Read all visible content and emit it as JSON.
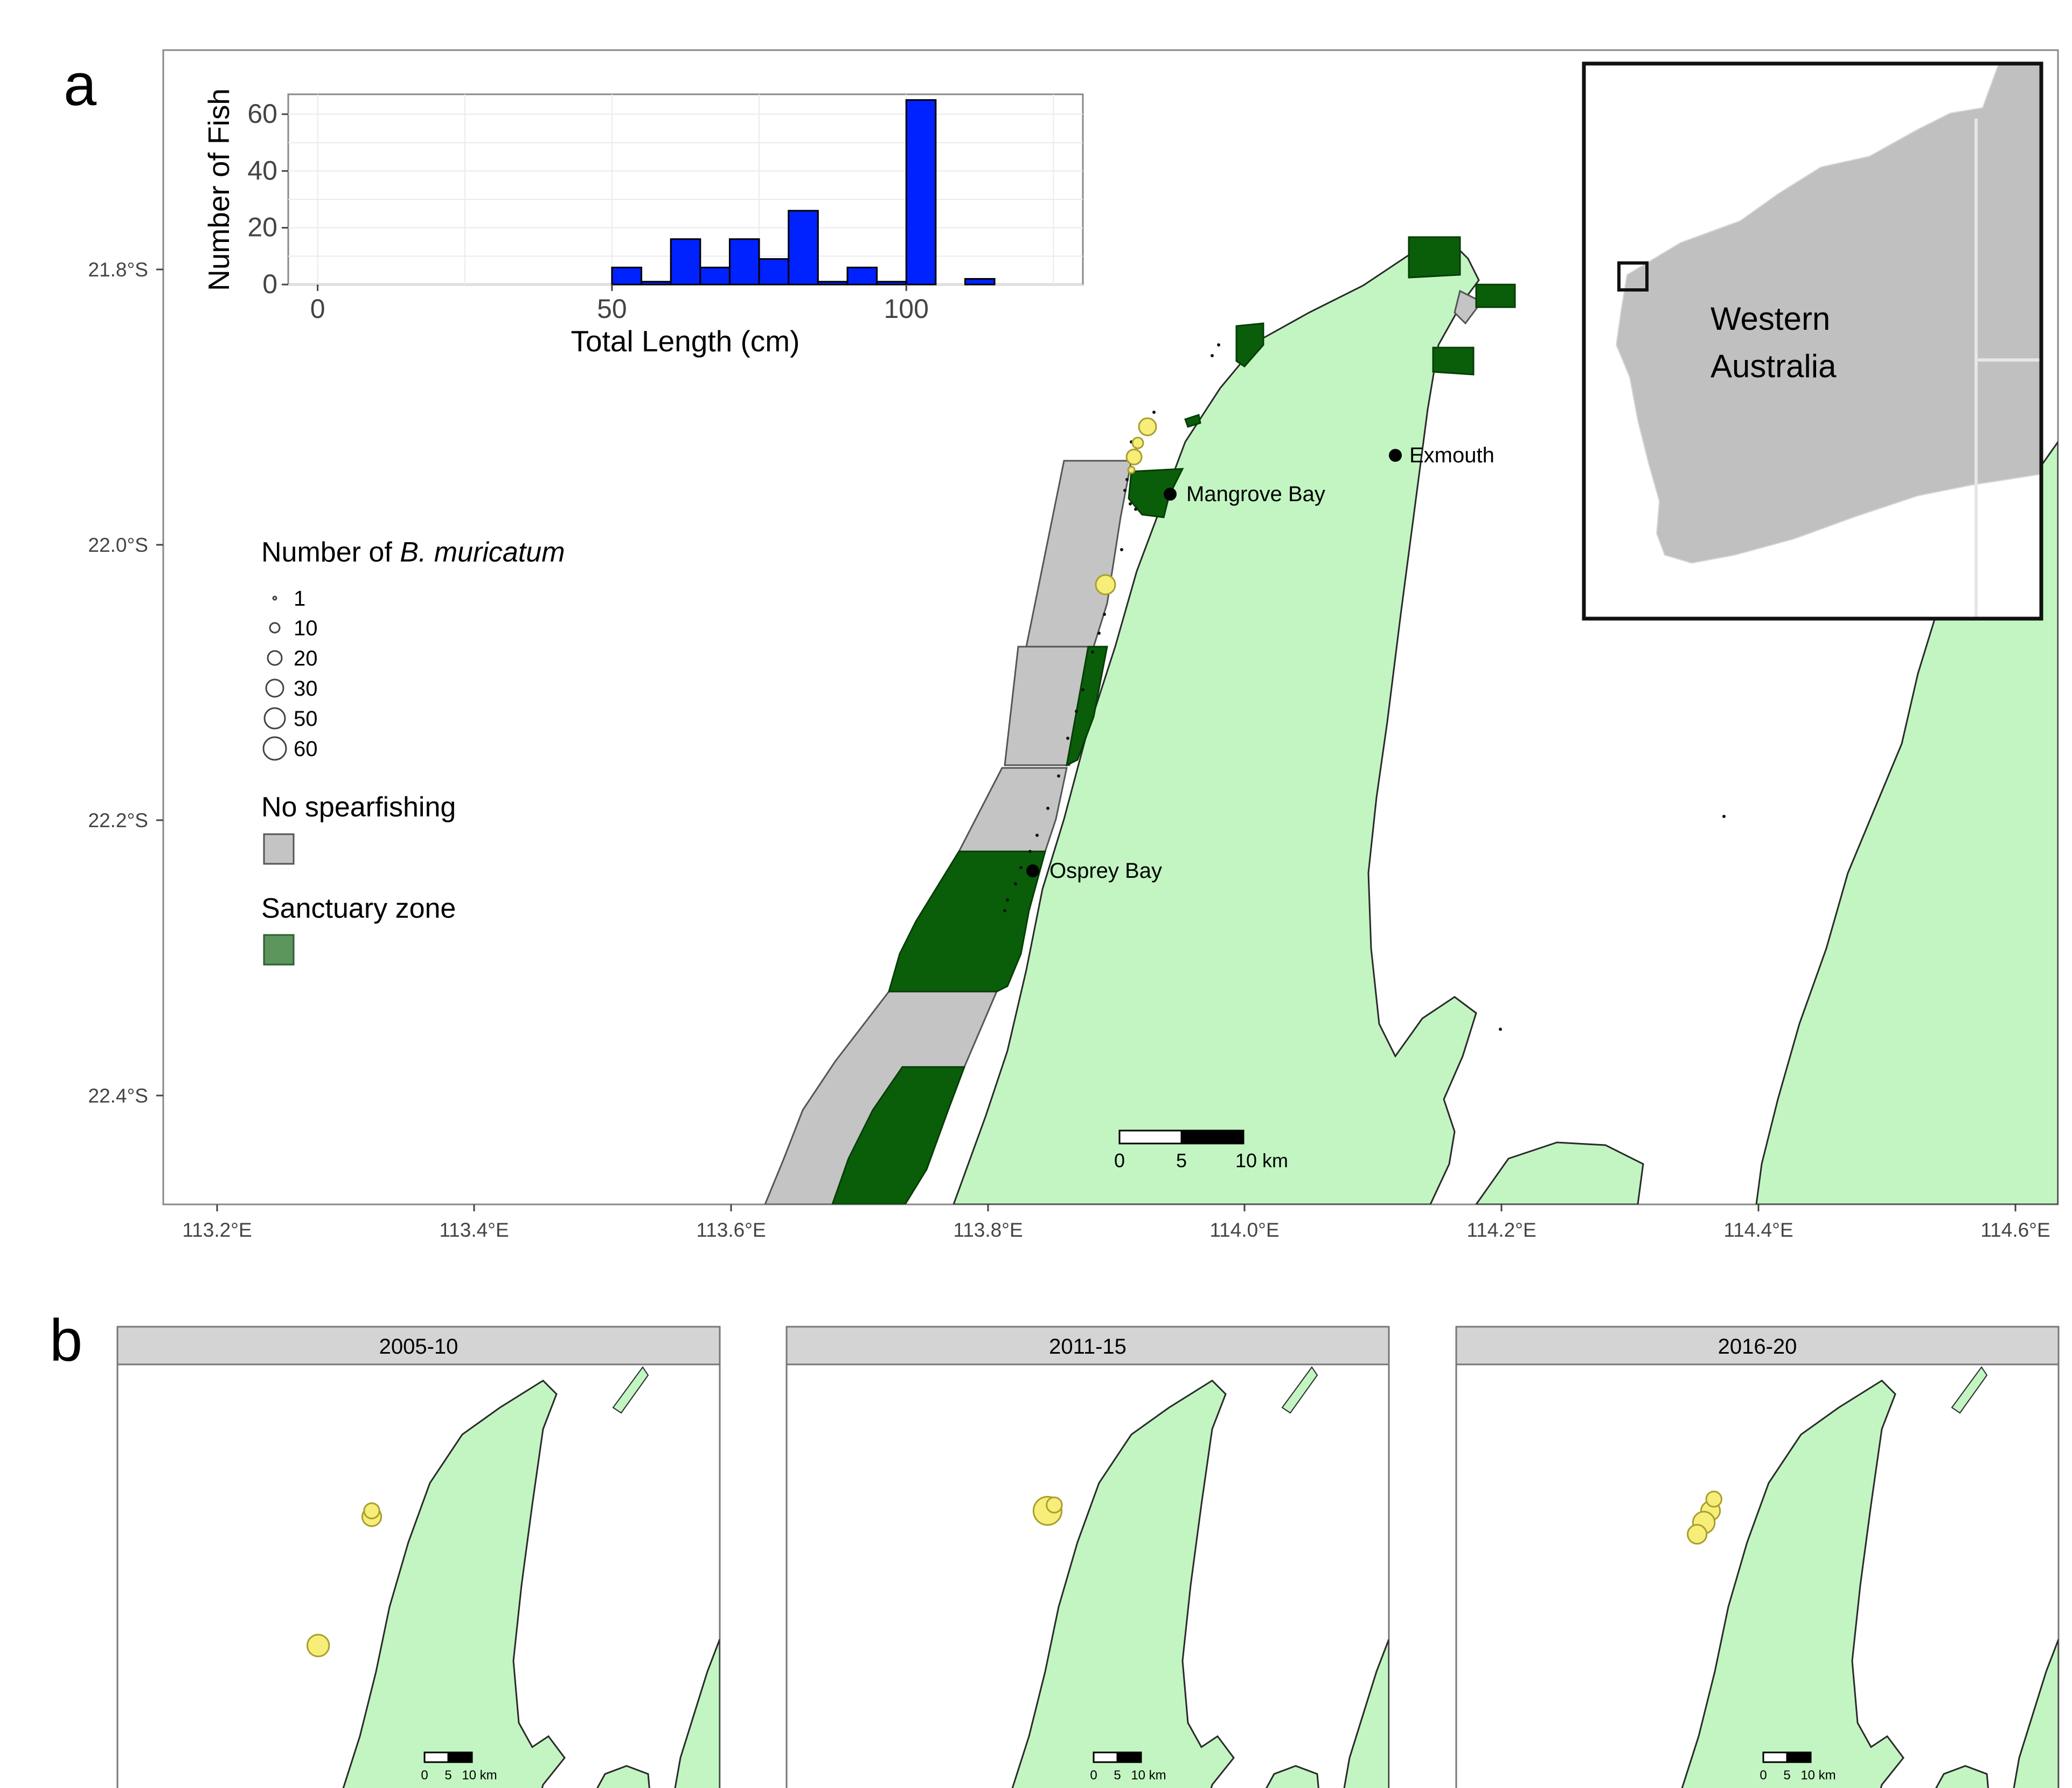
{
  "panel_a": {
    "label": "a",
    "lat_ticks": [
      "21.8°S",
      "22.0°S",
      "22.2°S",
      "22.4°S"
    ],
    "lon_ticks": [
      "113.2°E",
      "113.4°E",
      "113.6°E",
      "113.8°E",
      "114.0°E",
      "114.2°E",
      "114.4°E",
      "114.6°E"
    ],
    "places": [
      {
        "name": "Exmouth",
        "lon": 114.12,
        "lat": -21.93
      },
      {
        "name": "Mangrove Bay",
        "lon": 113.945,
        "lat": -21.96
      },
      {
        "name": "Osprey Bay",
        "lon": 113.838,
        "lat": -22.235
      }
    ],
    "scale_bar": {
      "ticks": [
        "0",
        "5",
        "10 km"
      ]
    },
    "inset": {
      "label_line1": "Western",
      "label_line2": "Australia"
    },
    "legend": {
      "count_title_prefix": "Number of ",
      "count_title_species": "B. muricatum",
      "count_levels": [
        "1",
        "10",
        "20",
        "30",
        "50",
        "60"
      ],
      "no_spearfishing_title": "No spearfishing",
      "sanctuary_title": "Sanctuary zone"
    },
    "colors": {
      "land": "#c2f5c2",
      "sanctuary": "#0a5e0a",
      "no_spearfishing": "#c4c4c4",
      "points": "#f6ee78",
      "histogram": "#0022ff"
    }
  },
  "chart_data": {
    "type": "bar",
    "xlabel": "Total Length (cm)",
    "ylabel": "Number of Fish",
    "x_ticks": [
      "0",
      "50",
      "100"
    ],
    "y_ticks": [
      "0",
      "20",
      "40",
      "60"
    ],
    "xlim": [
      -5,
      130
    ],
    "ylim": [
      0,
      67
    ],
    "bin_width": 5,
    "bins": [
      {
        "x": 52.5,
        "count": 6
      },
      {
        "x": 57.5,
        "count": 1
      },
      {
        "x": 62.5,
        "count": 16
      },
      {
        "x": 67.5,
        "count": 6
      },
      {
        "x": 72.5,
        "count": 16
      },
      {
        "x": 77.5,
        "count": 9
      },
      {
        "x": 82.5,
        "count": 26
      },
      {
        "x": 87.5,
        "count": 1
      },
      {
        "x": 92.5,
        "count": 6
      },
      {
        "x": 97.5,
        "count": 1
      },
      {
        "x": 102.5,
        "count": 65
      },
      {
        "x": 112.5,
        "count": 2
      }
    ]
  },
  "panel_b": {
    "label": "b",
    "facets": [
      {
        "title": "2005-10",
        "points": [
          {
            "lon": 113.93,
            "lat": -21.96,
            "n": 20
          },
          {
            "lon": 113.93,
            "lat": -21.95,
            "n": 10
          },
          {
            "lon": 113.85,
            "lat": -22.18,
            "n": 30
          }
        ]
      },
      {
        "title": "2011-15",
        "points": [
          {
            "lon": 113.94,
            "lat": -21.95,
            "n": 60
          },
          {
            "lon": 113.95,
            "lat": -21.94,
            "n": 10
          }
        ]
      },
      {
        "title": "2016-20",
        "points": [
          {
            "lon": 113.93,
            "lat": -21.95,
            "n": 20
          },
          {
            "lon": 113.92,
            "lat": -21.97,
            "n": 30
          },
          {
            "lon": 113.91,
            "lat": -21.99,
            "n": 20
          },
          {
            "lon": 113.935,
            "lat": -21.93,
            "n": 10
          }
        ]
      }
    ],
    "scale_bar": {
      "ticks": [
        "0",
        "5",
        "10 km"
      ]
    }
  }
}
